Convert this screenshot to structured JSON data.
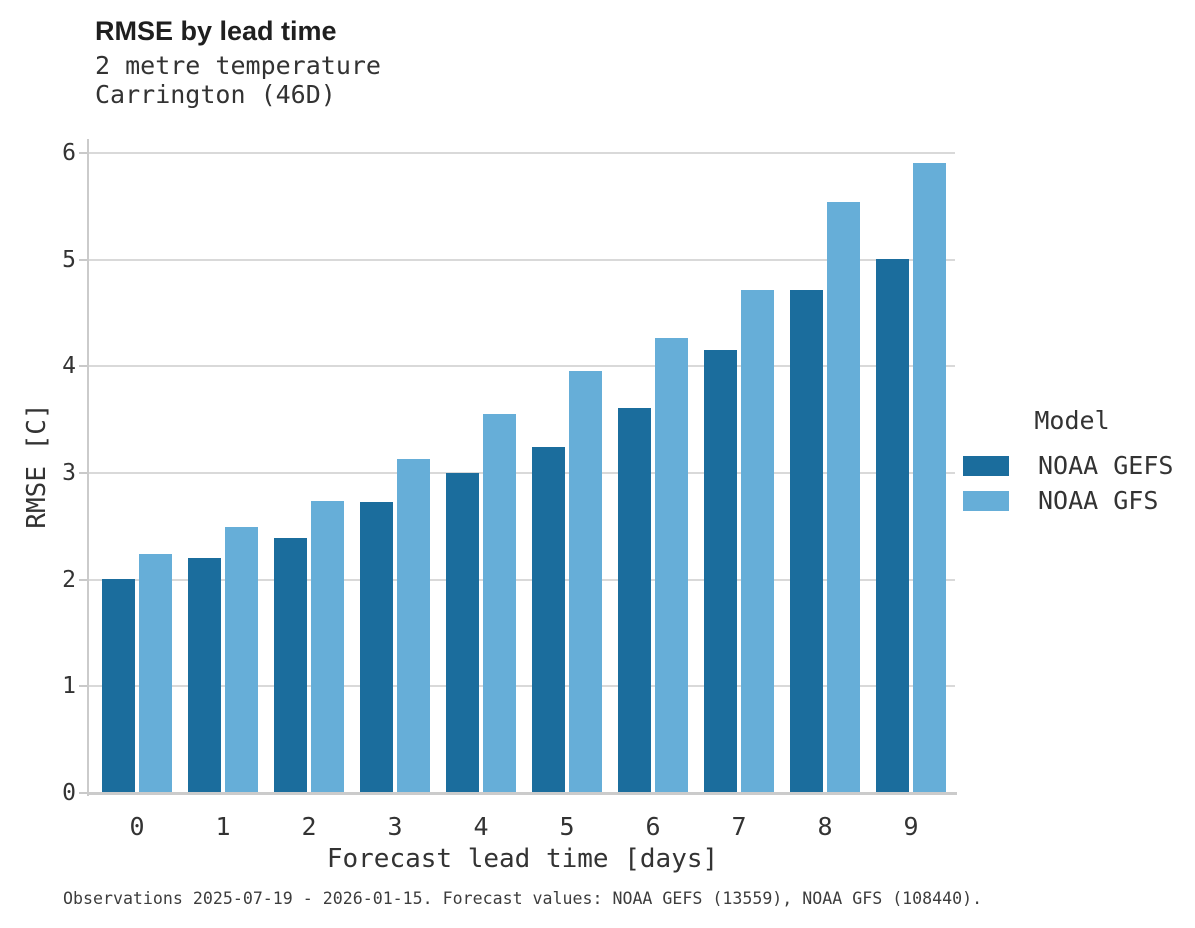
{
  "header": {
    "title": "RMSE by lead time",
    "subtitle_line1": "2 metre temperature",
    "subtitle_line2": "Carrington (46D)"
  },
  "chart_data": {
    "type": "bar",
    "title": "RMSE by lead time",
    "subtitle": [
      "2 metre temperature",
      "Carrington (46D)"
    ],
    "categories": [
      "0",
      "1",
      "2",
      "3",
      "4",
      "5",
      "6",
      "7",
      "8",
      "9"
    ],
    "series": [
      {
        "name": "NOAA GEFS",
        "color": "#1b6d9d",
        "values": [
          2.01,
          2.2,
          2.39,
          2.73,
          3.0,
          3.24,
          3.61,
          4.15,
          4.72,
          5.01
        ]
      },
      {
        "name": "NOAA GFS",
        "color": "#66aed8",
        "values": [
          2.24,
          2.49,
          2.74,
          3.13,
          3.55,
          3.96,
          4.27,
          4.72,
          5.54,
          5.91
        ]
      }
    ],
    "xlabel": "Forecast lead time [days]",
    "ylabel": "RMSE [C]",
    "ylim": [
      0,
      6
    ],
    "yticks": [
      0,
      1,
      2,
      3,
      4,
      5,
      6
    ],
    "grid": true,
    "legend_title": "Model",
    "legend_position": "right",
    "colors": {
      "gridline": "#d9d9d9",
      "axis": "#cbcbcb",
      "tick_text": "#333333"
    }
  },
  "footer": {
    "note": "Observations 2025-07-19 - 2026-01-15. Forecast values: NOAA GEFS (13559), NOAA GFS (108440)."
  }
}
